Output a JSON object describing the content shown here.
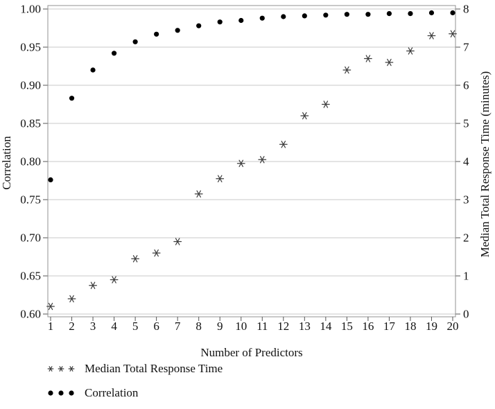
{
  "figure": {
    "x_axis_title": "Number of Predictors",
    "y_left_title": "Correlation",
    "y_right_title": "Median Total Response Time (minutes)"
  },
  "legend": [
    {
      "label": "Median Total Response Time",
      "marker": "asterisk"
    },
    {
      "label": "Correlation",
      "marker": "dot"
    }
  ],
  "chart_data": {
    "type": "scatter",
    "title": "",
    "xlabel": "Number of Predictors",
    "x": [
      1,
      2,
      3,
      4,
      5,
      6,
      7,
      8,
      9,
      10,
      11,
      12,
      13,
      14,
      15,
      16,
      17,
      18,
      19,
      20
    ],
    "x_tick_labels": [
      "1",
      "2",
      "3",
      "4",
      "5",
      "6",
      "7",
      "8",
      "9",
      "10",
      "11",
      "12",
      "13",
      "14",
      "15",
      "16",
      "17",
      "18",
      "19",
      "20"
    ],
    "series": [
      {
        "name": "Correlation",
        "axis": "left",
        "marker": "dot",
        "values": [
          0.776,
          0.883,
          0.92,
          0.942,
          0.957,
          0.967,
          0.972,
          0.978,
          0.983,
          0.985,
          0.988,
          0.99,
          0.991,
          0.992,
          0.993,
          0.993,
          0.994,
          0.994,
          0.995,
          0.995
        ]
      },
      {
        "name": "Median Total Response Time",
        "axis": "right",
        "marker": "asterisk",
        "values": [
          0.2,
          0.4,
          0.75,
          0.9,
          1.45,
          1.6,
          1.9,
          3.15,
          3.55,
          3.95,
          4.05,
          4.45,
          5.2,
          5.5,
          6.4,
          6.7,
          6.6,
          6.9,
          7.3,
          7.35
        ]
      }
    ],
    "left_axis": {
      "label": "Correlation",
      "min": 0.6,
      "max": 1.0,
      "tick_step": 0.05,
      "tick_labels": [
        "1.00",
        "0.95",
        "0.90",
        "0.85",
        "0.80",
        "0.75",
        "0.70",
        "0.65",
        "0.60"
      ]
    },
    "right_axis": {
      "label": "Median Total Response Time (minutes)",
      "min": 0,
      "max": 8,
      "tick_step": 1,
      "tick_labels": [
        "8",
        "7",
        "6",
        "5",
        "4",
        "3",
        "2",
        "1",
        "0"
      ]
    },
    "grid": "horizontal",
    "legend_position": "bottom-left",
    "colors": {
      "dot_marker": "#000000",
      "asterisk_marker": "#3c3c3c",
      "gridline": "#c9c9c9",
      "border": "#909090",
      "tick": "#555555",
      "text": "#111111"
    }
  }
}
